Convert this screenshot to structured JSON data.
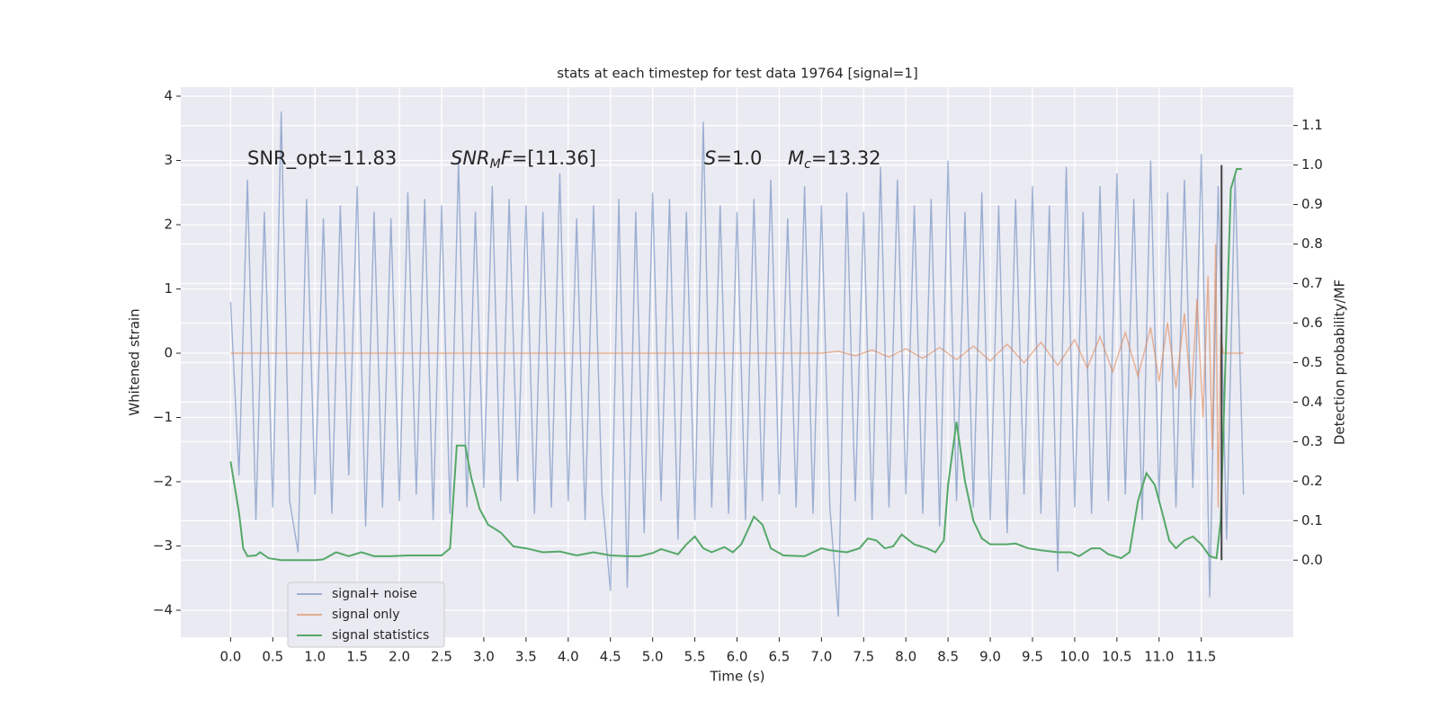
{
  "chart_data": {
    "type": "line",
    "title": "stats at each timestep for test data 19764 [signal=1]",
    "x_label": "Time (s)",
    "y_label": "Whitened strain",
    "y2_label": "Detection probability/MF",
    "xlim": [
      -0.59,
      12.59
    ],
    "ylim": [
      -4.42,
      4.14
    ],
    "y2lim": [
      -0.195,
      1.197
    ],
    "xticks": [
      {
        "value": 0,
        "label": "0.0"
      },
      {
        "value": 0.5,
        "label": "0.5"
      },
      {
        "value": 1,
        "label": "1.0"
      },
      {
        "value": 1.5,
        "label": "1.5"
      },
      {
        "value": 2,
        "label": "2.0"
      },
      {
        "value": 2.5,
        "label": "2.5"
      },
      {
        "value": 3,
        "label": "3.0"
      },
      {
        "value": 3.5,
        "label": "3.5"
      },
      {
        "value": 4,
        "label": "4.0"
      },
      {
        "value": 4.5,
        "label": "4.5"
      },
      {
        "value": 5,
        "label": "5.0"
      },
      {
        "value": 5.5,
        "label": "5.5"
      },
      {
        "value": 6,
        "label": "6.0"
      },
      {
        "value": 6.5,
        "label": "6.5"
      },
      {
        "value": 7,
        "label": "7.0"
      },
      {
        "value": 7.5,
        "label": "7.5"
      },
      {
        "value": 8,
        "label": "8.0"
      },
      {
        "value": 8.5,
        "label": "8.5"
      },
      {
        "value": 9,
        "label": "9.0"
      },
      {
        "value": 9.5,
        "label": "9.5"
      },
      {
        "value": 10,
        "label": "10.0"
      },
      {
        "value": 10.5,
        "label": "10.5"
      },
      {
        "value": 11,
        "label": "11.0"
      },
      {
        "value": 11.5,
        "label": "11.5"
      }
    ],
    "yticks": [
      {
        "value": -4,
        "label": "−4"
      },
      {
        "value": -3,
        "label": "−3"
      },
      {
        "value": -2,
        "label": "−2"
      },
      {
        "value": -1,
        "label": "−1"
      },
      0,
      1,
      2,
      3,
      4
    ],
    "y2ticks": [
      {
        "value": 0,
        "label": "0.0"
      },
      0.1,
      0.2,
      0.3,
      0.4,
      0.5,
      0.6,
      0.7,
      0.8,
      0.9,
      {
        "value": 1,
        "label": "1.0"
      },
      1.1
    ],
    "grid": true,
    "legend": "lower left",
    "annotations": [
      {
        "parts": [
          {
            "text": "SNR_opt=11.83"
          }
        ]
      },
      {
        "parts": [
          {
            "text": "SNR",
            "italic": true
          },
          {
            "text": "M",
            "italic": true,
            "sub": true
          },
          {
            "text": "F",
            "italic": true
          },
          {
            "text": "=[11.36]"
          }
        ]
      },
      {
        "parts": [
          {
            "text": "S",
            "italic": true
          },
          {
            "text": "=1.0"
          }
        ]
      },
      {
        "parts": [
          {
            "text": "M",
            "italic": true
          },
          {
            "text": "c",
            "italic": true,
            "sub": true
          },
          {
            "text": "=13.32"
          }
        ]
      }
    ],
    "marker_line": {
      "x": 11.74,
      "y2": [
        0,
        1.0
      ],
      "color": "#444444"
    },
    "series": [
      {
        "name": "signal+ noise",
        "color": "#4c72b0",
        "opacity": 0.5,
        "x": [
          0,
          0.1,
          0.2,
          0.3,
          0.4,
          0.5,
          0.6,
          0.7,
          0.8,
          0.9,
          1,
          1.1,
          1.2,
          1.3,
          1.4,
          1.5,
          1.6,
          1.7,
          1.8,
          1.9,
          2,
          2.1,
          2.2,
          2.3,
          2.4,
          2.5,
          2.6,
          2.7,
          2.8,
          2.9,
          3,
          3.1,
          3.2,
          3.3,
          3.4,
          3.5,
          3.6,
          3.7,
          3.8,
          3.9,
          4,
          4.1,
          4.2,
          4.3,
          4.4,
          4.5,
          4.6,
          4.7,
          4.8,
          4.9,
          5,
          5.1,
          5.2,
          5.3,
          5.4,
          5.5,
          5.6,
          5.7,
          5.8,
          5.9,
          6,
          6.1,
          6.2,
          6.3,
          6.4,
          6.5,
          6.6,
          6.7,
          6.8,
          6.9,
          7,
          7.1,
          7.2,
          7.3,
          7.4,
          7.5,
          7.6,
          7.7,
          7.8,
          7.9,
          8,
          8.1,
          8.2,
          8.3,
          8.4,
          8.5,
          8.6,
          8.7,
          8.8,
          8.9,
          9,
          9.1,
          9.2,
          9.3,
          9.4,
          9.5,
          9.6,
          9.7,
          9.8,
          9.9,
          10,
          10.1,
          10.2,
          10.3,
          10.4,
          10.5,
          10.6,
          10.7,
          10.8,
          10.9,
          11,
          11.1,
          11.2,
          11.3,
          11.4,
          11.5,
          11.6,
          11.7,
          11.8,
          11.9,
          12
        ],
        "values": [
          0.8,
          -1.9,
          2.7,
          -2.6,
          2.2,
          -2.4,
          3.76,
          -2.3,
          -3.1,
          2.4,
          -2.2,
          2.1,
          -2.5,
          2.3,
          -1.9,
          2.6,
          -2.7,
          2.2,
          -2.4,
          2.1,
          -2.3,
          2.5,
          -2.2,
          2.4,
          -2.6,
          2.3,
          -2.5,
          3.0,
          -2.4,
          2.2,
          -2.1,
          2.6,
          -2.3,
          2.4,
          -2.0,
          2.3,
          -2.5,
          2.2,
          -2.4,
          2.8,
          -2.3,
          2.1,
          -2.6,
          2.3,
          -2.2,
          -3.7,
          2.4,
          -3.65,
          2.2,
          -2.8,
          2.5,
          -2.3,
          2.4,
          -2.9,
          2.2,
          -2.6,
          3.6,
          -2.4,
          2.3,
          -2.5,
          2.2,
          -2.6,
          2.4,
          -2.3,
          2.7,
          -2.2,
          2.1,
          -2.4,
          2.6,
          -2.5,
          2.3,
          -2.4,
          -4.1,
          2.5,
          -2.3,
          2.2,
          -2.6,
          2.9,
          -2.4,
          2.7,
          -2.2,
          2.3,
          -2.5,
          2.4,
          -2.7,
          3.0,
          -2.3,
          2.2,
          -2.4,
          2.5,
          -2.6,
          2.3,
          -2.8,
          2.4,
          -2.2,
          2.6,
          -2.5,
          2.3,
          -3.4,
          2.9,
          -2.4,
          2.2,
          -2.5,
          2.6,
          -2.3,
          2.8,
          -2.2,
          2.4,
          -2.6,
          3.0,
          -2.3,
          2.5,
          -2.4,
          2.7,
          -2.1,
          3.1,
          -3.8,
          2.6,
          -2.9,
          2.8,
          -2.2
        ]
      },
      {
        "name": "signal only",
        "color": "#dd8452",
        "opacity": 0.6,
        "x": [
          0,
          7.0,
          7.2,
          7.4,
          7.6,
          7.8,
          8.0,
          8.2,
          8.4,
          8.6,
          8.8,
          9.0,
          9.2,
          9.4,
          9.6,
          9.8,
          10.0,
          10.15,
          10.3,
          10.45,
          10.6,
          10.75,
          10.9,
          11.0,
          11.1,
          11.2,
          11.3,
          11.38,
          11.45,
          11.52,
          11.58,
          11.63,
          11.67,
          11.7,
          11.73,
          11.76,
          12.0
        ],
        "values": [
          0,
          0,
          0.03,
          -0.04,
          0.05,
          -0.06,
          0.07,
          -0.08,
          0.09,
          -0.1,
          0.11,
          -0.12,
          0.14,
          -0.15,
          0.17,
          -0.19,
          0.21,
          -0.23,
          0.26,
          -0.29,
          0.32,
          -0.36,
          0.4,
          -0.44,
          0.48,
          -0.54,
          0.62,
          -0.72,
          0.85,
          -1.0,
          1.2,
          -1.5,
          1.7,
          -2.4,
          0.3,
          0,
          0
        ]
      },
      {
        "name": "signal statistics",
        "color": "#55a868",
        "opacity": 1,
        "axis": "y2",
        "x": [
          0,
          0.1,
          0.15,
          0.2,
          0.3,
          0.35,
          0.45,
          0.6,
          0.8,
          1.0,
          1.1,
          1.25,
          1.4,
          1.55,
          1.7,
          1.9,
          2.1,
          2.5,
          2.6,
          2.68,
          2.78,
          2.85,
          2.95,
          3.05,
          3.2,
          3.35,
          3.5,
          3.7,
          3.9,
          4.1,
          4.3,
          4.5,
          4.7,
          4.85,
          5.0,
          5.1,
          5.3,
          5.4,
          5.5,
          5.6,
          5.7,
          5.85,
          5.95,
          6.05,
          6.2,
          6.3,
          6.4,
          6.55,
          6.8,
          7.0,
          7.1,
          7.3,
          7.45,
          7.55,
          7.65,
          7.75,
          7.85,
          7.95,
          8.1,
          8.25,
          8.35,
          8.45,
          8.5,
          8.6,
          8.7,
          8.8,
          8.9,
          9.0,
          9.2,
          9.3,
          9.45,
          9.6,
          9.8,
          9.95,
          10.05,
          10.2,
          10.3,
          10.4,
          10.55,
          10.65,
          10.75,
          10.85,
          10.95,
          11.05,
          11.12,
          11.2,
          11.3,
          11.4,
          11.5,
          11.6,
          11.68,
          11.73,
          11.8,
          11.85,
          11.92,
          11.98
        ],
        "values": [
          0.25,
          0.12,
          0.03,
          0.01,
          0.012,
          0.02,
          0.005,
          0.0,
          0.0,
          0.0,
          0.002,
          0.02,
          0.01,
          0.02,
          0.01,
          0.01,
          0.012,
          0.012,
          0.03,
          0.29,
          0.29,
          0.21,
          0.13,
          0.09,
          0.07,
          0.035,
          0.03,
          0.02,
          0.022,
          0.012,
          0.02,
          0.012,
          0.01,
          0.01,
          0.018,
          0.028,
          0.015,
          0.04,
          0.06,
          0.03,
          0.02,
          0.033,
          0.02,
          0.04,
          0.11,
          0.09,
          0.03,
          0.012,
          0.01,
          0.03,
          0.025,
          0.02,
          0.03,
          0.055,
          0.05,
          0.03,
          0.035,
          0.065,
          0.04,
          0.03,
          0.02,
          0.05,
          0.19,
          0.35,
          0.2,
          0.1,
          0.055,
          0.04,
          0.04,
          0.042,
          0.03,
          0.025,
          0.02,
          0.02,
          0.01,
          0.03,
          0.03,
          0.015,
          0.005,
          0.02,
          0.15,
          0.22,
          0.19,
          0.11,
          0.05,
          0.03,
          0.05,
          0.06,
          0.04,
          0.01,
          0.005,
          0.1,
          0.6,
          0.94,
          0.99,
          0.99
        ]
      }
    ]
  }
}
